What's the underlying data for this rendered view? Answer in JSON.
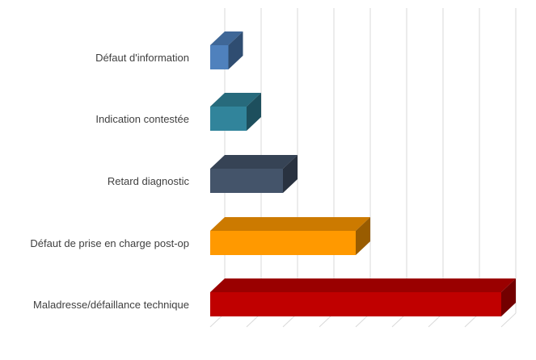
{
  "chart_data": {
    "type": "bar",
    "orientation": "horizontal",
    "style": "3d",
    "title": "",
    "xlabel": "",
    "ylabel": "",
    "xlim": [
      0,
      80
    ],
    "grid": true,
    "legend": "none",
    "categories": [
      "Défaut d'information",
      "Indication contestée",
      "Retard diagnostic",
      "Défaut de prise en charge post-op",
      "Maladresse/défaillance technique"
    ],
    "values": [
      5,
      10,
      20,
      40,
      80
    ],
    "colors": [
      "#4F81BD",
      "#31849B",
      "#44546A",
      "#FF9900",
      "#C00000"
    ]
  }
}
